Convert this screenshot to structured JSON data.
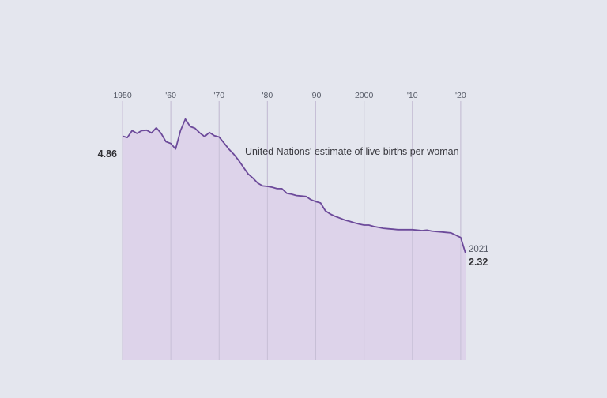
{
  "chart_data": {
    "type": "area",
    "annotation": "United Nations' estimate of live births per woman",
    "x_ticks": [
      "1950",
      "'60",
      "'70",
      "'80",
      "'90",
      "2000",
      "'10",
      "'20"
    ],
    "x_tick_values": [
      1950,
      1960,
      1970,
      1980,
      1990,
      2000,
      2010,
      2020
    ],
    "xlim": [
      1950,
      2021
    ],
    "ylim": [
      0,
      5.5
    ],
    "grid": "vertical",
    "start_label": "4.86",
    "end_year_label": "2021",
    "end_value_label": "2.32",
    "series": [
      {
        "x": [
          1950,
          1951,
          1952,
          1953,
          1954,
          1955,
          1956,
          1957,
          1958,
          1959,
          1960,
          1961,
          1962,
          1963,
          1964,
          1965,
          1966,
          1967,
          1968,
          1969,
          1970,
          1971,
          1972,
          1973,
          1974,
          1975,
          1976,
          1977,
          1978,
          1979,
          1980,
          1981,
          1982,
          1983,
          1984,
          1985,
          1986,
          1987,
          1988,
          1989,
          1990,
          1991,
          1992,
          1993,
          1994,
          1995,
          1996,
          1997,
          1998,
          1999,
          2000,
          2001,
          2002,
          2003,
          2004,
          2005,
          2006,
          2007,
          2008,
          2009,
          2010,
          2011,
          2012,
          2013,
          2014,
          2015,
          2016,
          2017,
          2018,
          2019,
          2020,
          2021
        ],
        "values": [
          4.86,
          4.83,
          4.98,
          4.92,
          4.98,
          4.99,
          4.93,
          5.04,
          4.92,
          4.74,
          4.7,
          4.58,
          4.98,
          5.23,
          5.07,
          5.03,
          4.93,
          4.85,
          4.94,
          4.87,
          4.84,
          4.71,
          4.58,
          4.47,
          4.34,
          4.19,
          4.04,
          3.95,
          3.84,
          3.78,
          3.77,
          3.75,
          3.72,
          3.72,
          3.62,
          3.6,
          3.57,
          3.56,
          3.55,
          3.48,
          3.44,
          3.41,
          3.24,
          3.17,
          3.12,
          3.08,
          3.04,
          3.01,
          2.98,
          2.95,
          2.93,
          2.93,
          2.9,
          2.88,
          2.86,
          2.85,
          2.84,
          2.83,
          2.83,
          2.83,
          2.83,
          2.82,
          2.81,
          2.82,
          2.8,
          2.79,
          2.78,
          2.77,
          2.76,
          2.71,
          2.66,
          2.32
        ]
      }
    ],
    "colors": {
      "line": "#6c4a9a",
      "fill": "#ddd3ea",
      "grid": "#bfc1cc",
      "background": "#e4e6ee"
    }
  }
}
